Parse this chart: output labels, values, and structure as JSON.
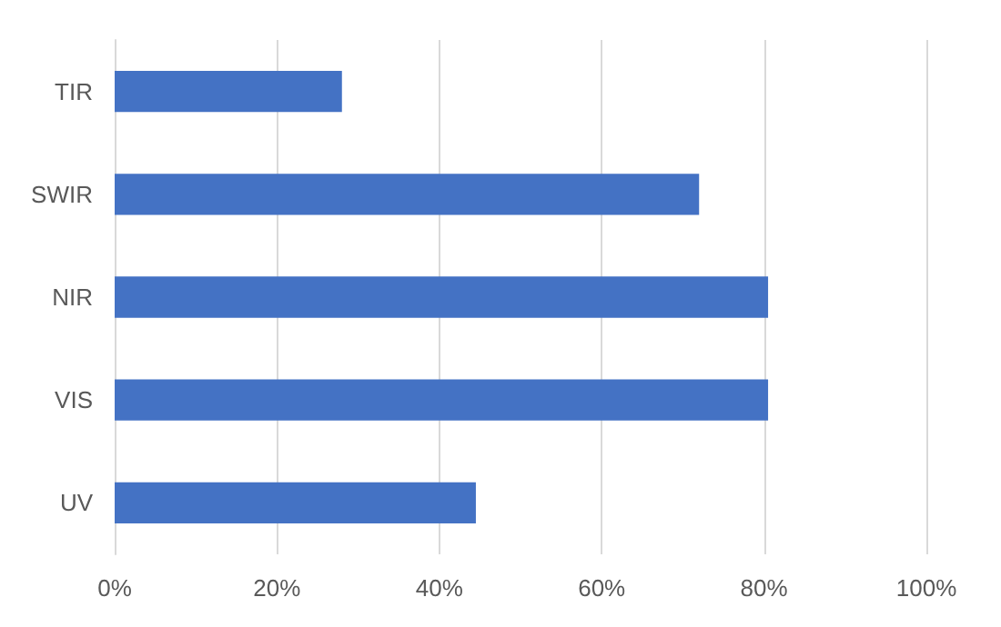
{
  "chart_data": {
    "type": "bar",
    "orientation": "horizontal",
    "categories": [
      "TIR",
      "SWIR",
      "NIR",
      "VIS",
      "UV"
    ],
    "values": [
      28,
      72,
      80.5,
      80.5,
      44.5
    ],
    "color": "#4472c4",
    "xlim": [
      0,
      100
    ],
    "xticks": [
      {
        "value": 0,
        "label": "0%"
      },
      {
        "value": 20,
        "label": "20%"
      },
      {
        "value": 40,
        "label": "40%"
      },
      {
        "value": 60,
        "label": "60%"
      },
      {
        "value": 80,
        "label": "80%"
      },
      {
        "value": 100,
        "label": "100%"
      }
    ],
    "grid": "x"
  }
}
